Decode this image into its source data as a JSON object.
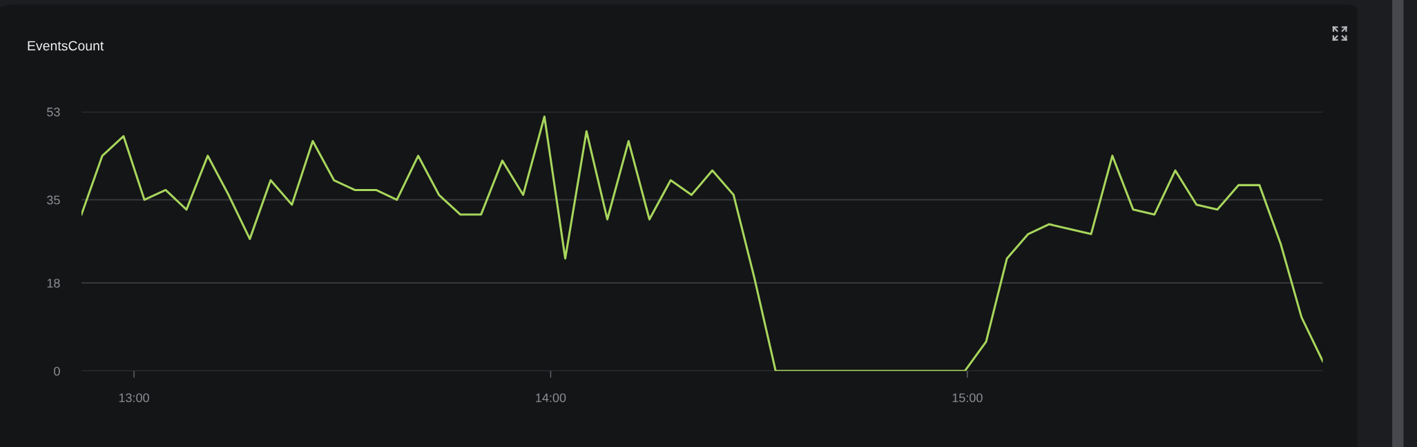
{
  "chart_data": {
    "type": "line",
    "title": "EventsCount",
    "x": [
      12.874,
      12.924,
      12.975,
      13.025,
      13.076,
      13.126,
      13.177,
      13.227,
      13.278,
      13.328,
      13.379,
      13.429,
      13.48,
      13.53,
      13.581,
      13.631,
      13.682,
      13.732,
      13.783,
      13.833,
      13.884,
      13.934,
      13.985,
      14.035,
      14.086,
      14.136,
      14.187,
      14.237,
      14.288,
      14.338,
      14.388,
      14.439,
      14.489,
      14.54,
      14.59,
      14.641,
      14.691,
      14.742,
      14.792,
      14.843,
      14.893,
      14.944,
      14.994,
      15.045,
      15.095,
      15.146,
      15.196,
      15.247,
      15.297,
      15.348,
      15.398,
      15.449,
      15.499,
      15.55,
      15.6,
      15.651,
      15.701,
      15.752,
      15.802,
      15.853
    ],
    "series": [
      {
        "color": "#a8d65c",
        "values": [
          32,
          44,
          48,
          35,
          37,
          33,
          44,
          36,
          27,
          39,
          34,
          47,
          39,
          37,
          37,
          35,
          44,
          36,
          32,
          32,
          43,
          36,
          52,
          23,
          49,
          31,
          47,
          31,
          39,
          36,
          41,
          36,
          19,
          0,
          0,
          0,
          0,
          0,
          0,
          0,
          0,
          0,
          0,
          6,
          23,
          28,
          30,
          29,
          28,
          44,
          33,
          32,
          41,
          34,
          33,
          38,
          38,
          26,
          11,
          2
        ]
      }
    ],
    "xlim": [
      12.874,
      15.853
    ],
    "ylim": [
      0,
      53
    ],
    "xticks": [
      {
        "value": 13,
        "label": "13:00"
      },
      {
        "value": 14,
        "label": "14:00"
      },
      {
        "value": 15,
        "label": "15:00"
      }
    ],
    "yticks": [
      0,
      18,
      35,
      53
    ],
    "grid": "y",
    "marker": "none",
    "line_style": "solid"
  }
}
